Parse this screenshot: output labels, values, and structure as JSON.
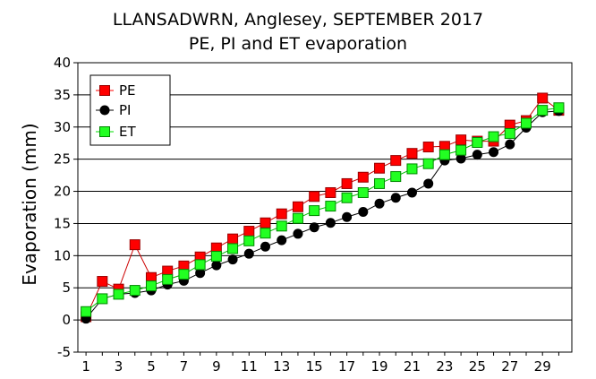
{
  "chart_data": {
    "type": "line",
    "title": "LLANSADWRN, Anglesey, SEPTEMBER 2017",
    "subtitle": "PE, PI and ET evaporation",
    "xlabel": "",
    "ylabel": "Evaporation (mm)",
    "xlim": [
      1,
      30
    ],
    "ylim": [
      -5,
      40
    ],
    "x_ticks": [
      1,
      3,
      5,
      7,
      9,
      11,
      13,
      15,
      17,
      19,
      21,
      23,
      25,
      27,
      29
    ],
    "y_ticks": [
      -5,
      0,
      5,
      10,
      15,
      20,
      25,
      30,
      35,
      40
    ],
    "grid": "horizontal",
    "legend_position": "top-left",
    "x": [
      1,
      2,
      3,
      4,
      5,
      6,
      7,
      8,
      9,
      10,
      11,
      12,
      13,
      14,
      15,
      16,
      17,
      18,
      19,
      20,
      21,
      22,
      23,
      24,
      25,
      26,
      27,
      28,
      29,
      30
    ],
    "series": [
      {
        "name": "PE",
        "color": "#ff0000",
        "marker": "square",
        "values": [
          0.5,
          6.0,
          4.8,
          11.7,
          6.6,
          7.6,
          8.4,
          9.8,
          11.2,
          12.6,
          13.8,
          15.1,
          16.5,
          17.6,
          19.2,
          19.8,
          21.2,
          22.2,
          23.6,
          24.8,
          25.9,
          26.9,
          27.0,
          28.0,
          27.8,
          27.8,
          30.3,
          31.0,
          34.5,
          32.6
        ]
      },
      {
        "name": "PI",
        "color": "#000000",
        "marker": "circle",
        "values": [
          0.2,
          3.3,
          4.0,
          4.2,
          4.6,
          5.5,
          6.1,
          7.3,
          8.5,
          9.4,
          10.3,
          11.4,
          12.4,
          13.4,
          14.4,
          15.1,
          16.0,
          16.8,
          18.1,
          19.0,
          19.8,
          21.2,
          24.8,
          25.1,
          25.7,
          26.1,
          27.3,
          29.9,
          32.3,
          32.5
        ]
      },
      {
        "name": "ET",
        "color": "#00dd00",
        "marker": "square",
        "values": [
          1.3,
          3.3,
          4.0,
          4.6,
          5.3,
          6.3,
          7.1,
          8.6,
          9.9,
          11.1,
          12.3,
          13.5,
          14.6,
          15.8,
          17.0,
          17.7,
          19.0,
          19.8,
          21.2,
          22.3,
          23.5,
          24.3,
          25.7,
          26.4,
          27.6,
          28.5,
          29.0,
          30.6,
          32.6,
          33.0
        ]
      }
    ]
  }
}
